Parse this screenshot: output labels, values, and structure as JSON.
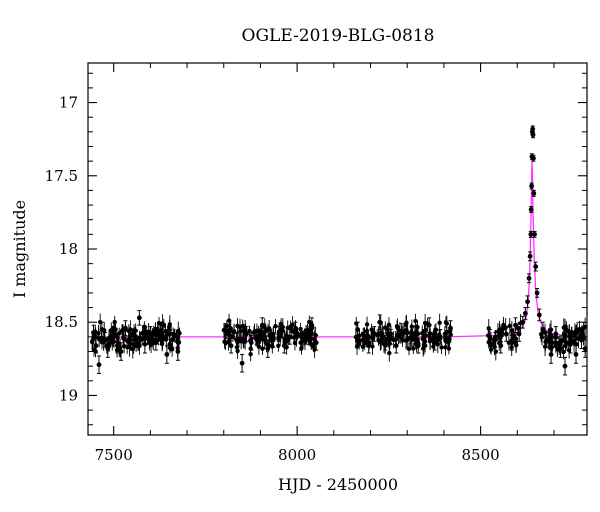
{
  "chart_data": {
    "type": "scatter",
    "title": "OGLE-2019-BLG-0818",
    "xlabel": "HJD - 2450000",
    "ylabel": "I magnitude",
    "xlim": [
      7430,
      8790
    ],
    "ylim": [
      19.27,
      16.73
    ],
    "y_inverted": true,
    "grid": false,
    "legend": "none",
    "x_ticks": [
      7500,
      8000,
      8500
    ],
    "x_tick_labels": [
      "7500",
      "8000",
      "8500"
    ],
    "y_ticks": [
      17,
      17.5,
      18,
      18.5,
      19
    ],
    "y_tick_labels": [
      "17",
      "17.5",
      "18",
      "18.5",
      "19"
    ],
    "colors": {
      "points": "#000000",
      "model": "#ff33ff"
    },
    "series": [
      {
        "kind": "points_with_errorbars",
        "baseline_mag": 18.6,
        "seasons": [
          [
            7440,
            7680
          ],
          [
            7800,
            8055
          ],
          [
            8160,
            8420
          ],
          [
            8520,
            8785
          ]
        ],
        "x": [
          7445,
          7452,
          7460,
          7468,
          7476,
          7484,
          7492,
          7500,
          7510,
          7520,
          7532,
          7545,
          7558,
          7570,
          7585,
          7600,
          7615,
          7630,
          7645,
          7660,
          7675,
          7805,
          7820,
          7835,
          7850,
          7862,
          7875,
          7890,
          7905,
          7920,
          7935,
          7950,
          7965,
          7980,
          7995,
          8010,
          8025,
          8040,
          8052,
          8165,
          8180,
          8195,
          8210,
          8225,
          8240,
          8255,
          8270,
          8285,
          8300,
          8315,
          8330,
          8345,
          8360,
          8375,
          8390,
          8405,
          8418,
          8525,
          8540,
          8555,
          8570,
          8585,
          8595,
          8605,
          8615,
          8622,
          8628,
          8632,
          8635,
          8637,
          8638,
          8639,
          8640,
          8641,
          8642,
          8643,
          8644,
          8645,
          8647,
          8650,
          8654,
          8660,
          8670,
          8680,
          8692,
          8705,
          8718,
          8730,
          8745,
          8760,
          8775,
          8785
        ],
        "y": [
          18.57,
          18.66,
          18.79,
          18.55,
          18.62,
          18.68,
          18.6,
          18.58,
          18.66,
          18.7,
          18.54,
          18.62,
          18.6,
          18.47,
          18.65,
          18.58,
          18.64,
          18.6,
          18.72,
          18.62,
          18.7,
          18.56,
          18.66,
          18.62,
          18.78,
          18.58,
          18.64,
          18.6,
          18.52,
          18.68,
          18.62,
          18.58,
          18.66,
          18.6,
          18.55,
          18.64,
          18.6,
          18.52,
          18.64,
          18.55,
          18.62,
          18.66,
          18.58,
          18.5,
          18.64,
          18.6,
          18.66,
          18.56,
          18.62,
          18.58,
          18.66,
          18.6,
          18.52,
          18.64,
          18.6,
          18.62,
          18.54,
          18.6,
          18.62,
          18.66,
          18.58,
          18.64,
          18.52,
          18.58,
          18.5,
          18.44,
          18.36,
          18.2,
          18.05,
          17.9,
          17.73,
          17.57,
          17.37,
          17.2,
          17.18,
          17.22,
          17.38,
          17.62,
          17.9,
          18.12,
          18.3,
          18.45,
          18.55,
          18.62,
          18.72,
          18.58,
          18.68,
          18.8,
          18.65,
          18.72,
          18.62,
          18.68
        ],
        "yerr": [
          0.05,
          0.05,
          0.06,
          0.05,
          0.05,
          0.06,
          0.05,
          0.05,
          0.05,
          0.06,
          0.05,
          0.05,
          0.05,
          0.05,
          0.06,
          0.05,
          0.05,
          0.05,
          0.06,
          0.05,
          0.06,
          0.05,
          0.05,
          0.05,
          0.06,
          0.05,
          0.05,
          0.05,
          0.05,
          0.06,
          0.05,
          0.05,
          0.05,
          0.05,
          0.05,
          0.05,
          0.05,
          0.05,
          0.05,
          0.05,
          0.05,
          0.05,
          0.05,
          0.05,
          0.05,
          0.05,
          0.05,
          0.05,
          0.05,
          0.05,
          0.05,
          0.05,
          0.05,
          0.05,
          0.05,
          0.05,
          0.05,
          0.05,
          0.05,
          0.05,
          0.05,
          0.05,
          0.05,
          0.05,
          0.04,
          0.04,
          0.04,
          0.03,
          0.03,
          0.02,
          0.02,
          0.02,
          0.02,
          0.02,
          0.02,
          0.02,
          0.02,
          0.02,
          0.02,
          0.03,
          0.03,
          0.04,
          0.05,
          0.05,
          0.06,
          0.05,
          0.06,
          0.06,
          0.06,
          0.06,
          0.06,
          0.06
        ]
      },
      {
        "kind": "model_curve",
        "x": [
          7440,
          8400,
          8560,
          8600,
          8615,
          8625,
          8630,
          8634,
          8637,
          8639,
          8640,
          8641,
          8643,
          8646,
          8650,
          8656,
          8665,
          8680,
          8700,
          8740,
          8790
        ],
        "y": [
          18.6,
          18.6,
          18.59,
          18.57,
          18.53,
          18.46,
          18.35,
          18.15,
          17.85,
          17.55,
          17.4,
          17.45,
          17.75,
          18.05,
          18.28,
          18.42,
          18.51,
          18.56,
          18.58,
          18.595,
          18.6
        ]
      }
    ]
  }
}
